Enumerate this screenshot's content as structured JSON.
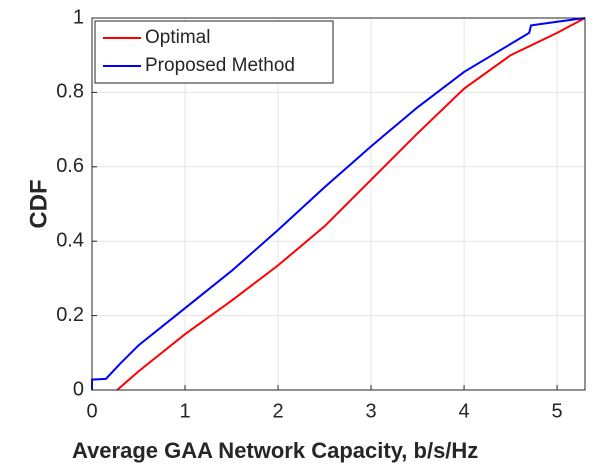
{
  "chart_data": {
    "type": "line",
    "xlabel": "Average GAA Network Capacity, b/s/Hz",
    "ylabel": "CDF",
    "xlim": [
      0,
      5.3
    ],
    "xticks": [
      0,
      1,
      2,
      3,
      4,
      5
    ],
    "ylim": [
      0,
      1
    ],
    "yticks": [
      0,
      0.2,
      0.4,
      0.6,
      0.8,
      1
    ],
    "grid": true,
    "legend": "upper left",
    "series": [
      {
        "name": "Optimal",
        "color": "#ff0000",
        "x": [
          0.27,
          0.5,
          1,
          1.5,
          2,
          2.5,
          3,
          3.5,
          4,
          4.5,
          5,
          5.3
        ],
        "values": [
          0,
          0.05,
          0.15,
          0.24,
          0.335,
          0.44,
          0.565,
          0.69,
          0.81,
          0.9,
          0.96,
          1
        ]
      },
      {
        "name": "Proposed Method",
        "color": "#0000ff",
        "x": [
          0,
          0,
          0.15,
          0.3,
          0.5,
          1,
          1.5,
          2,
          2.5,
          3,
          3.5,
          4,
          4.5,
          4.7,
          4.72,
          5,
          5.3
        ],
        "values": [
          0,
          0.028,
          0.03,
          0.07,
          0.12,
          0.22,
          0.32,
          0.43,
          0.545,
          0.655,
          0.76,
          0.855,
          0.93,
          0.96,
          0.98,
          0.99,
          1
        ]
      }
    ]
  }
}
